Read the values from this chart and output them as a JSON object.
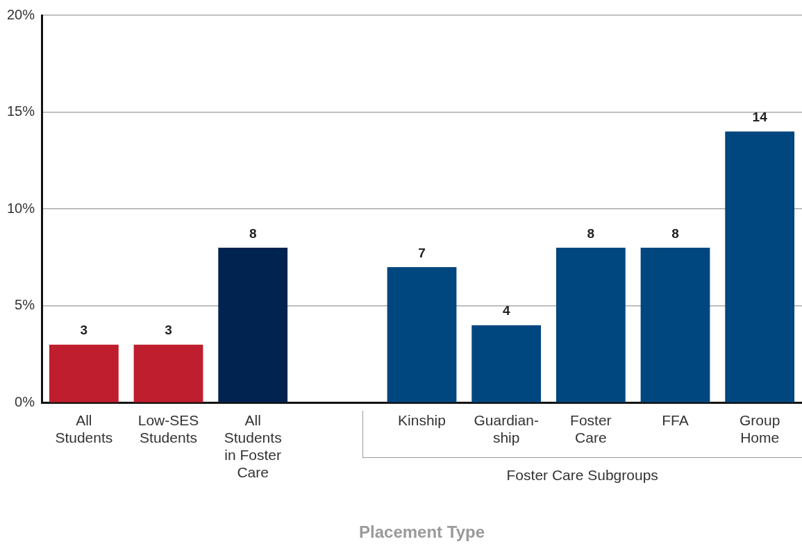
{
  "chart_data": {
    "type": "bar",
    "xlabel": "Placement Type",
    "categories": [
      "All Students",
      "Low-SES Students",
      "All Students in Foster Care",
      null,
      "Kinship",
      "Guardian-ship",
      "Foster Care",
      "FFA",
      "Group Home"
    ],
    "values": [
      3,
      3,
      8,
      null,
      7,
      4,
      8,
      8,
      14
    ],
    "colors": [
      "#be1e2d",
      "#be1e2d",
      "#002350",
      null,
      "#00467f",
      "#00467f",
      "#00467f",
      "#00467f",
      "#00467f"
    ],
    "ylim": [
      0,
      20
    ],
    "yticks": [
      {
        "value": 0,
        "label": "0%"
      },
      {
        "value": 5,
        "label": "5%"
      },
      {
        "value": 10,
        "label": "10%"
      },
      {
        "value": 15,
        "label": "15%"
      },
      {
        "value": 20,
        "label": "20%"
      }
    ],
    "grid": "y",
    "legend": false,
    "data_labels": true,
    "annotations": [
      "Foster Care Subgroups"
    ]
  }
}
